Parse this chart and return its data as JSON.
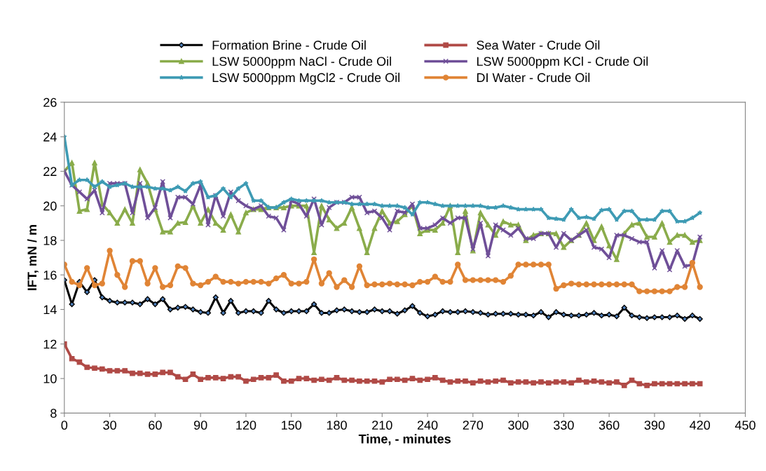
{
  "chart_data": {
    "type": "line",
    "xlabel": "Time, - minutes",
    "ylabel": "IFT, mN / m",
    "x": [
      0,
      5,
      10,
      15,
      20,
      25,
      30,
      35,
      40,
      45,
      50,
      55,
      60,
      65,
      70,
      75,
      80,
      85,
      90,
      95,
      100,
      105,
      110,
      115,
      120,
      125,
      130,
      135,
      140,
      145,
      150,
      155,
      160,
      165,
      170,
      175,
      180,
      185,
      190,
      195,
      200,
      205,
      210,
      215,
      220,
      225,
      230,
      235,
      240,
      245,
      250,
      255,
      260,
      265,
      270,
      275,
      280,
      285,
      290,
      295,
      300,
      305,
      310,
      315,
      320,
      325,
      330,
      335,
      340,
      345,
      350,
      355,
      360,
      365,
      370,
      375,
      380,
      385,
      390,
      395,
      400,
      405,
      410,
      415,
      420
    ],
    "xlim": [
      0,
      450
    ],
    "xticks": [
      0,
      30,
      60,
      90,
      120,
      150,
      180,
      210,
      240,
      270,
      300,
      330,
      360,
      390,
      420,
      450
    ],
    "ylim": [
      8,
      26
    ],
    "yticks": [
      8,
      10,
      12,
      14,
      16,
      18,
      20,
      22,
      24,
      26
    ],
    "grid": false,
    "legend": "top",
    "series": [
      {
        "name": "Formation Brine - Crude Oil",
        "color": "#000000",
        "marker": "diamond",
        "values": [
          15.7,
          14.3,
          15.6,
          15.0,
          15.7,
          14.7,
          14.5,
          14.4,
          14.4,
          14.4,
          14.3,
          14.6,
          14.3,
          14.6,
          14.0,
          14.1,
          14.15,
          14.0,
          13.85,
          13.8,
          14.7,
          13.8,
          14.5,
          13.8,
          13.9,
          13.9,
          13.8,
          14.5,
          14.0,
          13.8,
          13.9,
          13.9,
          13.9,
          14.3,
          13.8,
          13.8,
          13.95,
          14.0,
          13.9,
          13.85,
          13.85,
          14.0,
          13.9,
          13.9,
          13.75,
          13.95,
          14.2,
          13.8,
          13.6,
          13.7,
          13.9,
          13.85,
          13.85,
          13.9,
          13.85,
          13.8,
          13.7,
          13.75,
          13.75,
          13.75,
          13.7,
          13.7,
          13.65,
          13.85,
          13.55,
          13.85,
          13.7,
          13.65,
          13.65,
          13.7,
          13.8,
          13.65,
          13.7,
          13.6,
          14.1,
          13.65,
          13.55,
          13.5,
          13.55,
          13.55,
          13.55,
          13.65,
          13.45,
          13.65,
          13.45
        ]
      },
      {
        "name": "Sea Water - Crude Oil",
        "color": "#b04a46",
        "marker": "square",
        "values": [
          12.0,
          11.15,
          10.95,
          10.65,
          10.6,
          10.55,
          10.45,
          10.45,
          10.45,
          10.3,
          10.3,
          10.25,
          10.25,
          10.35,
          10.35,
          10.1,
          9.95,
          10.25,
          9.95,
          10.05,
          10.05,
          10.0,
          10.1,
          10.1,
          9.85,
          9.95,
          10.05,
          10.05,
          10.2,
          9.85,
          9.85,
          10.0,
          10.0,
          9.9,
          9.95,
          9.9,
          10.05,
          9.9,
          9.9,
          9.85,
          9.85,
          9.85,
          9.8,
          9.95,
          9.95,
          9.9,
          10.0,
          9.9,
          9.95,
          10.05,
          9.9,
          9.8,
          9.85,
          9.85,
          9.75,
          9.85,
          9.8,
          9.85,
          9.9,
          9.75,
          9.8,
          9.8,
          9.75,
          9.8,
          9.75,
          9.8,
          9.8,
          9.75,
          9.9,
          9.8,
          9.85,
          9.8,
          9.75,
          9.8,
          9.6,
          9.9,
          9.7,
          9.6,
          9.7,
          9.7,
          9.7,
          9.7,
          9.7,
          9.7,
          9.7
        ]
      },
      {
        "name": "LSW 5000ppm NaCl - Crude Oil",
        "color": "#8aac4b",
        "marker": "triangle",
        "values": [
          22.0,
          22.5,
          19.7,
          19.8,
          22.5,
          20.1,
          19.6,
          19.0,
          19.8,
          19.0,
          22.1,
          21.3,
          19.8,
          18.5,
          18.5,
          19.0,
          19.05,
          20.0,
          19.0,
          19.8,
          19.0,
          18.6,
          19.5,
          18.5,
          19.6,
          19.8,
          19.8,
          19.9,
          19.9,
          19.9,
          20.0,
          20.0,
          20.0,
          17.3,
          20.0,
          19.2,
          18.7,
          19.0,
          19.9,
          18.7,
          17.3,
          18.7,
          19.7,
          19.0,
          19.1,
          19.5,
          20.0,
          18.4,
          18.6,
          18.6,
          19.0,
          20.0,
          17.3,
          19.7,
          17.4,
          19.6,
          18.9,
          18.3,
          19.1,
          18.9,
          18.9,
          18.0,
          18.3,
          18.4,
          18.4,
          18.4,
          17.6,
          18.0,
          18.3,
          19.0,
          18.0,
          18.8,
          17.7,
          16.9,
          18.4,
          18.9,
          19.0,
          18.2,
          18.2,
          19.0,
          17.9,
          18.3,
          18.3,
          17.9,
          18.0
        ]
      },
      {
        "name": "LSW 5000ppm KCl - Crude Oil",
        "color": "#6f4f98",
        "marker": "cross",
        "values": [
          22.0,
          21.2,
          20.8,
          20.4,
          20.9,
          19.6,
          21.3,
          21.3,
          21.3,
          19.6,
          21.3,
          19.3,
          19.9,
          21.4,
          19.3,
          20.5,
          20.5,
          20.1,
          21.2,
          18.9,
          20.6,
          19.4,
          20.8,
          20.3,
          20.0,
          19.8,
          20.0,
          19.4,
          19.3,
          18.6,
          20.3,
          20.1,
          19.4,
          20.4,
          18.9,
          19.9,
          20.2,
          20.2,
          20.5,
          20.5,
          19.6,
          19.7,
          19.3,
          18.6,
          19.7,
          19.6,
          20.1,
          18.7,
          18.7,
          18.9,
          19.3,
          19.0,
          19.3,
          19.3,
          17.5,
          19.0,
          17.1,
          18.9,
          18.6,
          18.3,
          18.7,
          18.1,
          18.1,
          18.4,
          18.4,
          17.6,
          18.4,
          18.0,
          18.3,
          18.6,
          17.6,
          17.5,
          17.0,
          18.3,
          18.3,
          18.1,
          17.9,
          17.9,
          16.4,
          17.4,
          16.3,
          17.4,
          16.5,
          16.6,
          18.2
        ]
      },
      {
        "name": "LSW 5000ppm MgCl2 - Crude Oil",
        "color": "#3e9bb4",
        "marker": "star",
        "values": [
          24.0,
          21.2,
          21.5,
          21.5,
          21.1,
          21.4,
          21.1,
          21.2,
          21.3,
          21.1,
          21.1,
          21.1,
          21.0,
          21.0,
          20.9,
          21.1,
          20.85,
          21.3,
          21.4,
          20.5,
          20.6,
          21.0,
          20.5,
          21.0,
          21.3,
          20.3,
          20.3,
          19.9,
          19.9,
          20.2,
          20.4,
          20.3,
          20.3,
          20.3,
          20.3,
          20.2,
          20.2,
          20.2,
          20.1,
          20.1,
          20.1,
          20.1,
          20.0,
          20.0,
          20.0,
          19.9,
          19.5,
          20.2,
          20.2,
          20.1,
          20.0,
          20.0,
          20.0,
          20.0,
          20.0,
          20.0,
          19.9,
          19.9,
          20.0,
          19.9,
          19.8,
          19.8,
          19.8,
          19.8,
          19.3,
          19.25,
          19.2,
          19.8,
          19.3,
          19.35,
          19.25,
          19.75,
          19.8,
          19.2,
          19.7,
          19.7,
          19.2,
          19.2,
          19.2,
          19.7,
          19.7,
          19.1,
          19.1,
          19.3,
          19.6
        ]
      },
      {
        "name": "DI Water - Crude Oil",
        "color": "#e08435",
        "marker": "circle",
        "values": [
          16.6,
          15.6,
          15.4,
          16.4,
          15.4,
          15.5,
          17.4,
          16.0,
          15.3,
          16.8,
          16.8,
          15.5,
          16.4,
          15.3,
          15.4,
          16.5,
          16.4,
          15.5,
          15.4,
          15.6,
          15.9,
          15.6,
          15.6,
          15.5,
          15.6,
          15.6,
          15.6,
          15.5,
          15.8,
          16.0,
          15.5,
          15.5,
          15.6,
          16.9,
          15.5,
          16.1,
          15.3,
          15.7,
          15.3,
          16.5,
          15.4,
          15.45,
          15.45,
          15.5,
          15.45,
          15.45,
          15.4,
          15.6,
          15.6,
          15.9,
          15.6,
          15.6,
          16.6,
          15.7,
          15.7,
          15.7,
          15.7,
          15.7,
          15.6,
          15.95,
          16.6,
          16.6,
          16.6,
          16.6,
          16.6,
          15.2,
          15.4,
          15.5,
          15.45,
          15.45,
          15.45,
          15.45,
          15.45,
          15.45,
          15.45,
          15.45,
          15.05,
          15.05,
          15.05,
          15.05,
          15.05,
          15.3,
          15.3,
          16.7,
          15.3
        ]
      }
    ]
  }
}
